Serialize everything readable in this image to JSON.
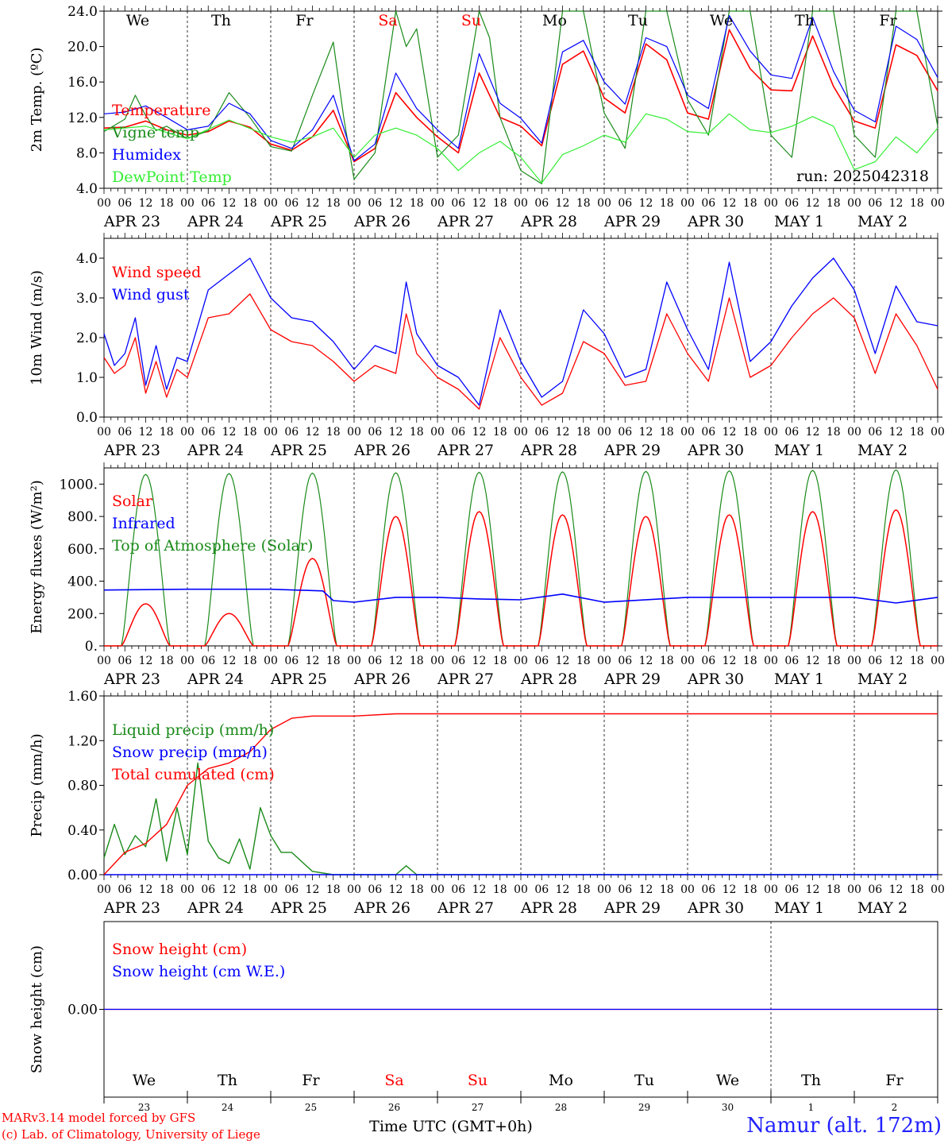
{
  "run_label": "run: 2025042318",
  "station": "Namur (alt. 172m)",
  "credits": [
    "MARv3.14 model forced by GFS",
    "(c) Lab. of Climatology, University of Liege"
  ],
  "xaxis_title": "Time UTC (GMT+0h)",
  "x_start": "2025-04-23 00:00",
  "x_end": "2025-05-03 00:00",
  "hour_ticks": [
    "00",
    "06",
    "12",
    "18"
  ],
  "date_labels": [
    "APR 23",
    "APR 24",
    "APR 25",
    "APR 26",
    "APR 27",
    "APR 28",
    "APR 29",
    "APR 30",
    "MAY  1",
    "MAY  2"
  ],
  "day_names": [
    {
      "label": "We",
      "color": "#000000"
    },
    {
      "label": "Th",
      "color": "#000000"
    },
    {
      "label": "Fr",
      "color": "#000000"
    },
    {
      "label": "Sa",
      "color": "#ff0000"
    },
    {
      "label": "Su",
      "color": "#ff0000"
    },
    {
      "label": "Mo",
      "color": "#000000"
    },
    {
      "label": "Tu",
      "color": "#000000"
    },
    {
      "label": "We",
      "color": "#000000"
    },
    {
      "label": "Th",
      "color": "#000000"
    },
    {
      "label": "Fr",
      "color": "#000000"
    }
  ],
  "bottom_day_numbers": [
    "23",
    "24",
    "25",
    "26",
    "27",
    "28",
    "29",
    "30",
    "1",
    "2"
  ],
  "colors": {
    "red": "#ff0000",
    "green": "#1a8a1a",
    "blue": "#0000ff",
    "lightgreen": "#33ee33",
    "grid": "#000000"
  },
  "chart_data": [
    {
      "id": "temp",
      "type": "line",
      "ylabel": "2m Temp. (ºC)",
      "ylim": [
        4.0,
        24.0
      ],
      "yticks": [
        4.0,
        8.0,
        12.0,
        16.0,
        20.0,
        24.0
      ],
      "ytick_labels": [
        "4.0",
        "8.0",
        "12.0",
        "16.0",
        "20.0",
        "24.0"
      ],
      "series": [
        {
          "name": "Temperature",
          "color": "#ff0000",
          "x_hours": [
            0,
            6,
            12,
            18,
            24,
            30,
            36,
            42,
            48,
            54,
            60,
            66,
            72,
            78,
            84,
            90,
            96,
            102,
            108,
            114,
            120,
            126,
            132,
            138,
            144,
            150,
            156,
            162,
            168,
            174,
            180,
            186,
            192,
            198,
            204,
            210,
            216,
            222,
            228,
            234,
            240
          ],
          "values": [
            10.8,
            10.9,
            11.6,
            10.6,
            10.0,
            10.4,
            11.6,
            10.9,
            9.0,
            8.3,
            9.8,
            12.8,
            7.0,
            8.5,
            14.8,
            12.0,
            9.8,
            8.0,
            17.0,
            12.0,
            11.0,
            8.8,
            18.0,
            19.5,
            14.2,
            12.5,
            20.3,
            18.5,
            12.5,
            11.8,
            21.9,
            17.5,
            15.1,
            15.0,
            21.2,
            15.5,
            11.6,
            10.8,
            20.2,
            19.0,
            15.0
          ]
        },
        {
          "name": "Vigne temp",
          "color": "#1a8a1a",
          "x_hours": [
            0,
            6,
            9,
            12,
            15,
            18,
            24,
            30,
            36,
            42,
            48,
            54,
            60,
            66,
            69,
            72,
            78,
            84,
            87,
            90,
            96,
            102,
            108,
            111,
            114,
            120,
            126,
            132,
            138,
            144,
            150,
            156,
            162,
            168,
            174,
            180,
            186,
            192,
            198,
            204,
            210,
            216,
            222,
            228,
            234,
            240
          ],
          "values": [
            10.4,
            11.8,
            14.5,
            12.2,
            10.5,
            11.0,
            9.6,
            10.5,
            14.8,
            12.0,
            8.7,
            8.2,
            14.5,
            20.5,
            12.0,
            5.0,
            8.0,
            24.0,
            20.0,
            22.0,
            7.5,
            10.0,
            24.0,
            21.0,
            12.0,
            6.0,
            4.5,
            24.0,
            24.0,
            12.5,
            8.5,
            24.0,
            24.0,
            14.0,
            10.0,
            24.0,
            24.0,
            10.0,
            7.5,
            24.0,
            24.0,
            10.0,
            7.5,
            24.0,
            24.0,
            11.0
          ]
        },
        {
          "name": "Humidex",
          "color": "#0000ff",
          "x_hours": [
            0,
            6,
            12,
            18,
            24,
            30,
            36,
            42,
            48,
            54,
            60,
            66,
            72,
            78,
            84,
            90,
            96,
            102,
            108,
            114,
            120,
            126,
            132,
            138,
            144,
            150,
            156,
            162,
            168,
            174,
            180,
            186,
            192,
            198,
            204,
            210,
            216,
            222,
            228,
            234,
            240
          ],
          "values": [
            12.4,
            12.6,
            13.3,
            12.0,
            10.6,
            11.0,
            13.6,
            12.4,
            9.4,
            8.5,
            10.6,
            14.5,
            7.1,
            9.0,
            17.0,
            13.0,
            10.6,
            8.5,
            19.2,
            13.6,
            11.9,
            9.1,
            19.4,
            20.7,
            16.0,
            13.5,
            21.0,
            20.0,
            14.5,
            13.0,
            23.5,
            19.5,
            16.8,
            16.4,
            23.3,
            17.2,
            12.8,
            11.5,
            22.3,
            20.8,
            16.5
          ]
        },
        {
          "name": "DewPoint Temp",
          "color": "#33ee33",
          "x_hours": [
            0,
            12,
            24,
            36,
            48,
            54,
            60,
            66,
            72,
            78,
            84,
            90,
            96,
            102,
            108,
            114,
            120,
            126,
            132,
            138,
            144,
            150,
            156,
            162,
            168,
            174,
            180,
            186,
            192,
            198,
            204,
            210,
            216,
            222,
            228,
            234,
            240
          ],
          "values": [
            10.6,
            11.0,
            9.6,
            11.7,
            9.8,
            9.2,
            9.8,
            10.8,
            7.5,
            10.0,
            10.8,
            10.0,
            8.5,
            6.0,
            8.0,
            9.3,
            7.5,
            4.6,
            7.8,
            8.8,
            10.0,
            9.2,
            12.4,
            11.8,
            10.4,
            10.2,
            12.4,
            10.6,
            10.3,
            11.0,
            12.1,
            11.0,
            6.1,
            7.0,
            9.8,
            8.0,
            10.8
          ]
        }
      ]
    },
    {
      "id": "wind",
      "type": "line",
      "ylabel": "10m Wind (m/s)",
      "ylim": [
        0.0,
        4.5
      ],
      "yticks": [
        0.0,
        1.0,
        2.0,
        3.0,
        4.0
      ],
      "ytick_labels": [
        "0.0",
        "1.0",
        "2.0",
        "3.0",
        "4.0"
      ],
      "series": [
        {
          "name": "Wind speed",
          "color": "#ff0000",
          "x_hours": [
            0,
            3,
            6,
            9,
            12,
            15,
            18,
            21,
            24,
            30,
            36,
            42,
            48,
            54,
            60,
            66,
            72,
            78,
            84,
            87,
            90,
            96,
            102,
            108,
            114,
            120,
            126,
            132,
            138,
            144,
            150,
            156,
            162,
            168,
            174,
            180,
            186,
            192,
            198,
            204,
            210,
            216,
            222,
            228,
            234,
            240
          ],
          "values": [
            1.5,
            1.1,
            1.3,
            2.0,
            0.6,
            1.4,
            0.5,
            1.2,
            1.0,
            2.5,
            2.6,
            3.1,
            2.2,
            1.9,
            1.8,
            1.4,
            0.9,
            1.3,
            1.1,
            2.6,
            1.6,
            1.0,
            0.7,
            0.2,
            2.0,
            1.0,
            0.3,
            0.6,
            1.9,
            1.6,
            0.8,
            0.9,
            2.6,
            1.6,
            0.9,
            3.0,
            1.0,
            1.3,
            2.0,
            2.6,
            3.0,
            2.5,
            1.1,
            2.6,
            1.8,
            0.7
          ]
        },
        {
          "name": "Wind gust",
          "color": "#0000ff",
          "x_hours": [
            0,
            3,
            6,
            9,
            12,
            15,
            18,
            21,
            24,
            30,
            36,
            42,
            48,
            54,
            60,
            66,
            72,
            78,
            84,
            87,
            90,
            96,
            102,
            108,
            114,
            120,
            126,
            132,
            138,
            144,
            150,
            156,
            162,
            168,
            174,
            180,
            186,
            192,
            198,
            204,
            210,
            216,
            222,
            228,
            234,
            240
          ],
          "values": [
            2.1,
            1.3,
            1.6,
            2.5,
            0.8,
            1.8,
            0.7,
            1.5,
            1.4,
            3.2,
            3.6,
            4.0,
            3.0,
            2.5,
            2.4,
            1.9,
            1.2,
            1.8,
            1.6,
            3.4,
            2.1,
            1.3,
            1.0,
            0.3,
            2.7,
            1.4,
            0.5,
            0.9,
            2.7,
            2.1,
            1.0,
            1.2,
            3.4,
            2.2,
            1.2,
            3.9,
            1.4,
            1.9,
            2.8,
            3.5,
            4.0,
            3.2,
            1.6,
            3.3,
            2.4,
            2.3
          ]
        }
      ]
    },
    {
      "id": "energy",
      "type": "line",
      "ylabel": "Energy fluxes (W/m²)",
      "ylim": [
        0,
        1100
      ],
      "yticks": [
        0,
        200,
        400,
        600,
        800,
        1000
      ],
      "ytick_labels": [
        "0.",
        "200.",
        "400.",
        "600.",
        "800.",
        "1000."
      ],
      "series": [
        {
          "name": "Solar",
          "color": "#ff0000",
          "peaks": [
            260,
            200,
            540,
            800,
            830,
            810,
            800,
            810,
            830,
            840
          ]
        },
        {
          "name": "Infrared",
          "color": "#0000ff",
          "x_hours": [
            0,
            24,
            48,
            63,
            66,
            72,
            84,
            96,
            108,
            120,
            132,
            144,
            168,
            192,
            216,
            228,
            240
          ],
          "values": [
            345,
            350,
            350,
            340,
            280,
            270,
            300,
            300,
            290,
            285,
            320,
            270,
            300,
            300,
            300,
            265,
            300
          ]
        },
        {
          "name": "Top of Atmosphere (Solar)",
          "color": "#1a8a1a",
          "peaks": [
            1060,
            1065,
            1068,
            1070,
            1073,
            1076,
            1079,
            1082,
            1085,
            1088
          ]
        }
      ]
    },
    {
      "id": "precip",
      "type": "line",
      "ylabel": "Precip (mm/h)",
      "ylim": [
        0.0,
        1.6
      ],
      "yticks": [
        0.0,
        0.4,
        0.8,
        1.2,
        1.6
      ],
      "ytick_labels": [
        "0.00",
        "0.40",
        "0.80",
        "1.20",
        "1.60"
      ],
      "series": [
        {
          "name": "Liquid precip (mm/h)",
          "color": "#1a8a1a",
          "x_hours": [
            0,
            3,
            6,
            9,
            12,
            15,
            18,
            21,
            24,
            27,
            30,
            33,
            36,
            39,
            42,
            45,
            48,
            51,
            54,
            60,
            66,
            72,
            84,
            87,
            90,
            96,
            240
          ],
          "values": [
            0.15,
            0.45,
            0.18,
            0.35,
            0.25,
            0.68,
            0.12,
            0.6,
            0.18,
            1.0,
            0.3,
            0.15,
            0.1,
            0.32,
            0.05,
            0.6,
            0.35,
            0.2,
            0.2,
            0.03,
            0.0,
            0.0,
            0.0,
            0.08,
            0.0,
            0.0,
            0.0
          ]
        },
        {
          "name": "Snow precip (mm/h)",
          "color": "#0000ff",
          "x_hours": [
            0,
            240
          ],
          "values": [
            0,
            0
          ]
        },
        {
          "name": "Total cumulated (cm)",
          "color": "#ff0000",
          "x_hours": [
            0,
            6,
            12,
            18,
            24,
            30,
            36,
            42,
            48,
            54,
            60,
            72,
            84,
            96,
            240
          ],
          "values": [
            0.0,
            0.2,
            0.28,
            0.45,
            0.8,
            0.95,
            1.0,
            1.1,
            1.3,
            1.4,
            1.42,
            1.42,
            1.44,
            1.44,
            1.44
          ]
        }
      ]
    },
    {
      "id": "snow",
      "type": "line",
      "ylabel": "Snow height (cm)",
      "ylim": [
        -0.1,
        0.1
      ],
      "yticks": [
        0.0
      ],
      "ytick_labels": [
        "0.00"
      ],
      "series": [
        {
          "name": "Snow height (cm)",
          "color": "#ff0000",
          "x_hours": [
            0,
            240
          ],
          "values": [
            0,
            0
          ]
        },
        {
          "name": "Snow height (cm W.E.)",
          "color": "#0000ff",
          "x_hours": [
            0,
            240
          ],
          "values": [
            0,
            0
          ]
        }
      ]
    }
  ]
}
